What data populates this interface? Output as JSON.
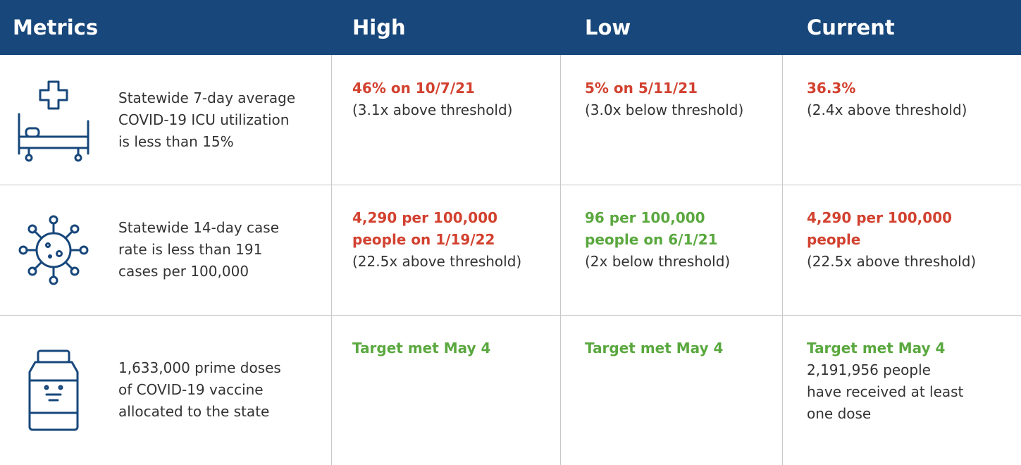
{
  "table": {
    "header": [
      "Metrics",
      "High",
      "Low",
      "Current"
    ],
    "rows": [
      {
        "metric": [
          "Statewide 7-day average",
          "COVID-19 ICU utilization",
          "is less than 15%"
        ],
        "high": {
          "highlight": [
            "46% on 10/7/21"
          ],
          "note": [
            "(3.1x above threshold)"
          ]
        },
        "low": {
          "highlight": [
            "5% on 5/11/21"
          ],
          "note": [
            "(3.0x below threshold)"
          ]
        },
        "current": {
          "highlight": [
            "36.3%"
          ],
          "note": [
            "(2.4x above threshold)"
          ]
        }
      },
      {
        "metric": [
          "Statewide 14-day case",
          "rate is less than 191",
          "cases per 100,000"
        ],
        "high": {
          "highlight": [
            "4,290 per 100,000",
            "people on 1/19/22"
          ],
          "note": [
            "(22.5x above threshold)"
          ]
        },
        "low": {
          "highlight": [
            "96 per 100,000",
            "people on 6/1/21"
          ],
          "note": [
            "(2x below threshold)"
          ]
        },
        "current": {
          "highlight": [
            "4,290 per 100,000",
            "people"
          ],
          "note": [
            "(22.5x above threshold)"
          ]
        }
      },
      {
        "metric": [
          "1,633,000 prime doses",
          "of COVID-19 vaccine",
          "allocated to the state"
        ],
        "high": {
          "highlight": [
            "Target met May 4"
          ]
        },
        "low": {
          "highlight": [
            "Target met May 4"
          ]
        },
        "current": {
          "highlight": [
            "Target met May 4"
          ],
          "note": [
            "2,191,956 people",
            "have received at least",
            "one dose"
          ]
        }
      }
    ]
  }
}
